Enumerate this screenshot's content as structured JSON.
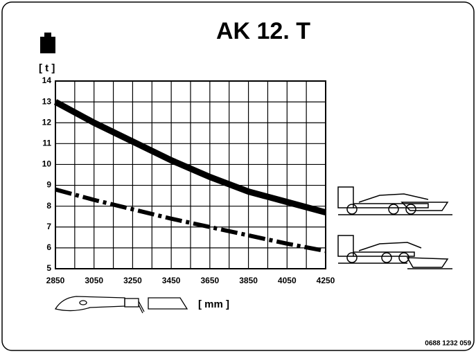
{
  "chart_data": {
    "type": "line",
    "title": "AK 12. T",
    "y_unit": "[ t ]",
    "x_unit": "[ mm ]",
    "code": "0688 1232 059",
    "x": [
      2850,
      3050,
      3250,
      3450,
      3650,
      3850,
      4050,
      4250
    ],
    "series": [
      {
        "color": "#000000",
        "style": "solid",
        "values": [
          13.0,
          12.0,
          11.1,
          10.2,
          9.4,
          8.7,
          8.2,
          7.7
        ]
      },
      {
        "color": "#000000",
        "style": "dash-dot",
        "values": [
          8.8,
          8.3,
          7.85,
          7.4,
          7.0,
          6.6,
          6.2,
          5.85
        ]
      }
    ],
    "xlim": [
      2850,
      4250
    ],
    "ylim": [
      5,
      14
    ],
    "xticks": [
      2850,
      3050,
      3250,
      3450,
      3650,
      3850,
      4050,
      4250
    ],
    "x_minor_ticks": [
      2950,
      3150,
      3350,
      3550,
      3750,
      3950,
      4150
    ],
    "yticks": [
      5,
      6,
      7,
      8,
      9,
      10,
      11,
      12,
      13,
      14
    ],
    "grid": true
  }
}
